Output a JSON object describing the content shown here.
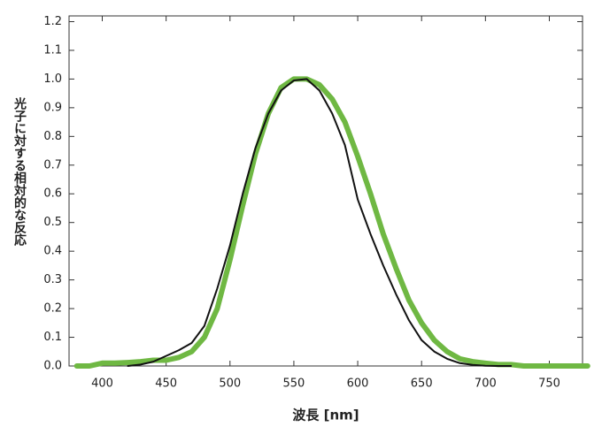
{
  "chart_data": {
    "type": "line",
    "ylabel": "光子に対する相対的な反応",
    "xlabel": "波長 [nm]",
    "x": [
      380,
      390,
      400,
      410,
      420,
      430,
      440,
      450,
      460,
      470,
      480,
      490,
      500,
      510,
      520,
      530,
      540,
      550,
      560,
      570,
      580,
      590,
      600,
      610,
      620,
      630,
      640,
      650,
      660,
      670,
      680,
      690,
      700,
      710,
      720,
      730,
      740,
      750,
      760,
      770,
      780
    ],
    "series": [
      {
        "color": "#6fb843",
        "width": 6,
        "values": [
          0,
          0,
          0.01,
          0.01,
          0.012,
          0.015,
          0.02,
          0.02,
          0.03,
          0.05,
          0.1,
          0.2,
          0.37,
          0.56,
          0.74,
          0.88,
          0.97,
          1.0,
          1.0,
          0.98,
          0.93,
          0.85,
          0.73,
          0.6,
          0.46,
          0.34,
          0.23,
          0.15,
          0.09,
          0.05,
          0.025,
          0.015,
          0.01,
          0.005,
          0.005,
          0,
          0,
          0,
          0,
          0,
          0
        ]
      },
      {
        "color": "#111111",
        "width": 2,
        "values": [
          null,
          null,
          null,
          null,
          0,
          0.005,
          0.015,
          0.035,
          0.055,
          0.08,
          0.14,
          0.27,
          0.42,
          0.6,
          0.76,
          0.88,
          0.96,
          0.995,
          1.0,
          0.96,
          0.88,
          0.77,
          0.58,
          0.46,
          0.35,
          0.25,
          0.16,
          0.09,
          0.05,
          0.025,
          0.01,
          0.004,
          0.001,
          0,
          0,
          null,
          null,
          null,
          null,
          null,
          null
        ]
      }
    ],
    "xlim": [
      374,
      776
    ],
    "xticks": [
      400,
      450,
      500,
      550,
      600,
      650,
      700,
      750
    ],
    "ylim": [
      0,
      1.22
    ],
    "yticks": [
      {
        "value": 0,
        "label": "0.0"
      },
      0.1,
      0.2,
      0.3,
      0.4,
      0.5,
      0.6,
      0.7,
      0.8,
      0.9,
      {
        "value": 1,
        "label": "1.0"
      },
      1.1,
      1.2
    ],
    "grid": false
  }
}
